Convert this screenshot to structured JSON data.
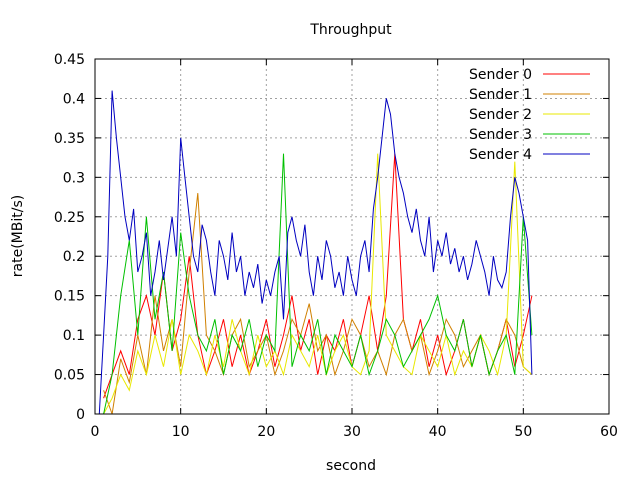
{
  "chart_data": {
    "type": "line",
    "title": "Throughput",
    "xlabel": "second",
    "ylabel": "rate(MBit/s)",
    "xlim": [
      0,
      60
    ],
    "ylim": [
      0,
      0.45
    ],
    "xticks": [
      "0",
      "10",
      "20",
      "30",
      "40",
      "50",
      "60"
    ],
    "yticks": [
      "0",
      "0.05",
      "0.1",
      "0.15",
      "0.2",
      "0.25",
      "0.3",
      "0.35",
      "0.4",
      "0.45"
    ],
    "grid": true,
    "legend_position": "top-right",
    "series": [
      {
        "name": "Sender 0",
        "color": "#ff0000",
        "x": [
          1.0,
          2.0,
          3.0,
          4.0,
          5.0,
          6.0,
          7.0,
          8.0,
          9.0,
          10.0,
          11.0,
          12.0,
          13.0,
          14.0,
          15.0,
          16.0,
          17.0,
          18.0,
          19.0,
          20.0,
          21.0,
          22.0,
          23.0,
          24.0,
          25.0,
          26.0,
          27.0,
          28.0,
          29.0,
          30.0,
          31.0,
          32.0,
          33.0,
          34.0,
          35.0,
          36.0,
          37.0,
          38.0,
          39.0,
          40.0,
          41.0,
          42.0,
          43.0,
          44.0,
          45.0,
          46.0,
          47.0,
          48.0,
          49.0,
          50.0,
          51.0
        ],
        "y": [
          0.02,
          0.05,
          0.08,
          0.05,
          0.12,
          0.15,
          0.1,
          0.18,
          0.08,
          0.12,
          0.2,
          0.1,
          0.05,
          0.08,
          0.12,
          0.06,
          0.1,
          0.05,
          0.08,
          0.12,
          0.06,
          0.1,
          0.15,
          0.08,
          0.12,
          0.05,
          0.1,
          0.08,
          0.12,
          0.06,
          0.1,
          0.15,
          0.08,
          0.15,
          0.33,
          0.12,
          0.08,
          0.12,
          0.06,
          0.1,
          0.05,
          0.08,
          0.12,
          0.06,
          0.1,
          0.05,
          0.08,
          0.12,
          0.06,
          0.1,
          0.15
        ]
      },
      {
        "name": "Sender 1",
        "color": "#d08000",
        "x": [
          1.0,
          2.0,
          3.0,
          4.0,
          5.0,
          6.0,
          7.0,
          8.0,
          9.0,
          10.0,
          11.0,
          12.0,
          13.0,
          14.0,
          15.0,
          16.0,
          17.0,
          18.0,
          19.0,
          20.0,
          21.0,
          22.0,
          23.0,
          24.0,
          25.0,
          26.0,
          27.0,
          28.0,
          29.0,
          30.0,
          31.0,
          32.0,
          33.0,
          34.0,
          35.0,
          36.0,
          37.0,
          38.0,
          39.0,
          40.0,
          41.0,
          42.0,
          43.0,
          44.0,
          45.0,
          46.0,
          47.0,
          48.0,
          49.0,
          50.0,
          51.0
        ],
        "y": [
          0.03,
          0.0,
          0.07,
          0.04,
          0.1,
          0.05,
          0.15,
          0.08,
          0.12,
          0.06,
          0.18,
          0.28,
          0.1,
          0.08,
          0.05,
          0.1,
          0.12,
          0.06,
          0.08,
          0.1,
          0.05,
          0.08,
          0.12,
          0.1,
          0.14,
          0.08,
          0.1,
          0.05,
          0.08,
          0.12,
          0.1,
          0.06,
          0.08,
          0.05,
          0.1,
          0.12,
          0.08,
          0.1,
          0.05,
          0.08,
          0.12,
          0.1,
          0.06,
          0.08,
          0.1,
          0.05,
          0.08,
          0.12,
          0.1,
          0.06,
          0.05
        ]
      },
      {
        "name": "Sender 2",
        "color": "#e8e800",
        "x": [
          1.0,
          2.0,
          3.0,
          4.0,
          5.0,
          6.0,
          7.0,
          8.0,
          9.0,
          10.0,
          11.0,
          12.0,
          13.0,
          14.0,
          15.0,
          16.0,
          17.0,
          18.0,
          19.0,
          20.0,
          21.0,
          22.0,
          23.0,
          24.0,
          25.0,
          26.0,
          27.0,
          28.0,
          29.0,
          30.0,
          31.0,
          32.0,
          33.0,
          34.0,
          35.0,
          36.0,
          37.0,
          38.0,
          39.0,
          40.0,
          41.0,
          42.0,
          43.0,
          44.0,
          45.0,
          46.0,
          47.0,
          48.0,
          49.0,
          50.0,
          51.0
        ],
        "y": [
          0.0,
          0.02,
          0.05,
          0.03,
          0.08,
          0.05,
          0.1,
          0.06,
          0.12,
          0.05,
          0.1,
          0.08,
          0.05,
          0.1,
          0.06,
          0.12,
          0.08,
          0.05,
          0.1,
          0.06,
          0.08,
          0.05,
          0.1,
          0.08,
          0.06,
          0.1,
          0.05,
          0.08,
          0.1,
          0.06,
          0.05,
          0.08,
          0.33,
          0.1,
          0.08,
          0.06,
          0.05,
          0.1,
          0.08,
          0.06,
          0.1,
          0.05,
          0.08,
          0.06,
          0.1,
          0.08,
          0.05,
          0.1,
          0.32,
          0.06,
          0.05
        ]
      },
      {
        "name": "Sender 3",
        "color": "#00c000",
        "x": [
          1.0,
          2.0,
          3.0,
          4.0,
          5.0,
          6.0,
          7.0,
          8.0,
          9.0,
          10.0,
          11.0,
          12.0,
          13.0,
          14.0,
          15.0,
          16.0,
          17.0,
          18.0,
          19.0,
          20.0,
          21.0,
          22.0,
          23.0,
          24.0,
          25.0,
          26.0,
          27.0,
          28.0,
          29.0,
          30.0,
          31.0,
          32.0,
          33.0,
          34.0,
          35.0,
          36.0,
          37.0,
          38.0,
          39.0,
          40.0,
          41.0,
          42.0,
          43.0,
          44.0,
          45.0,
          46.0,
          47.0,
          48.0,
          49.0,
          50.0,
          51.0
        ],
        "y": [
          0.0,
          0.05,
          0.15,
          0.22,
          0.1,
          0.25,
          0.12,
          0.18,
          0.08,
          0.23,
          0.15,
          0.1,
          0.08,
          0.12,
          0.05,
          0.1,
          0.08,
          0.12,
          0.06,
          0.1,
          0.08,
          0.33,
          0.06,
          0.1,
          0.08,
          0.12,
          0.05,
          0.1,
          0.08,
          0.06,
          0.1,
          0.05,
          0.08,
          0.12,
          0.1,
          0.06,
          0.08,
          0.1,
          0.12,
          0.15,
          0.1,
          0.08,
          0.12,
          0.06,
          0.1,
          0.05,
          0.08,
          0.1,
          0.05,
          0.25,
          0.1
        ]
      },
      {
        "name": "Sender 4",
        "color": "#0000c0",
        "x": [
          0.5,
          1.0,
          1.5,
          2.0,
          2.5,
          3.0,
          3.5,
          4.0,
          4.5,
          5.0,
          5.5,
          6.0,
          6.5,
          7.0,
          7.5,
          8.0,
          8.5,
          9.0,
          9.5,
          10.0,
          10.5,
          11.0,
          11.5,
          12.0,
          12.5,
          13.0,
          13.5,
          14.0,
          14.5,
          15.0,
          15.5,
          16.0,
          16.5,
          17.0,
          17.5,
          18.0,
          18.5,
          19.0,
          19.5,
          20.0,
          20.5,
          21.0,
          21.5,
          22.0,
          22.5,
          23.0,
          23.5,
          24.0,
          24.5,
          25.0,
          25.5,
          26.0,
          26.5,
          27.0,
          27.5,
          28.0,
          28.5,
          29.0,
          29.5,
          30.0,
          30.5,
          31.0,
          31.5,
          32.0,
          32.5,
          33.0,
          33.5,
          34.0,
          34.5,
          35.0,
          35.5,
          36.0,
          36.5,
          37.0,
          37.5,
          38.0,
          38.5,
          39.0,
          39.5,
          40.0,
          40.5,
          41.0,
          41.5,
          42.0,
          42.5,
          43.0,
          43.5,
          44.0,
          44.5,
          45.0,
          45.5,
          46.0,
          46.5,
          47.0,
          47.5,
          48.0,
          48.5,
          49.0,
          49.5,
          50.0,
          50.5,
          51.0
        ],
        "y": [
          0.0,
          0.1,
          0.2,
          0.41,
          0.35,
          0.3,
          0.25,
          0.22,
          0.26,
          0.18,
          0.2,
          0.23,
          0.15,
          0.18,
          0.22,
          0.17,
          0.21,
          0.25,
          0.2,
          0.35,
          0.3,
          0.25,
          0.2,
          0.18,
          0.24,
          0.22,
          0.18,
          0.15,
          0.22,
          0.2,
          0.17,
          0.23,
          0.18,
          0.2,
          0.15,
          0.18,
          0.16,
          0.19,
          0.14,
          0.17,
          0.15,
          0.18,
          0.2,
          0.12,
          0.23,
          0.25,
          0.22,
          0.2,
          0.24,
          0.18,
          0.15,
          0.2,
          0.17,
          0.22,
          0.2,
          0.16,
          0.18,
          0.15,
          0.2,
          0.17,
          0.15,
          0.2,
          0.22,
          0.18,
          0.26,
          0.3,
          0.35,
          0.4,
          0.38,
          0.33,
          0.3,
          0.28,
          0.25,
          0.23,
          0.26,
          0.22,
          0.2,
          0.25,
          0.18,
          0.22,
          0.2,
          0.23,
          0.19,
          0.21,
          0.18,
          0.2,
          0.17,
          0.19,
          0.22,
          0.2,
          0.18,
          0.15,
          0.2,
          0.17,
          0.16,
          0.18,
          0.25,
          0.3,
          0.28,
          0.25,
          0.22,
          0.05
        ]
      }
    ]
  }
}
